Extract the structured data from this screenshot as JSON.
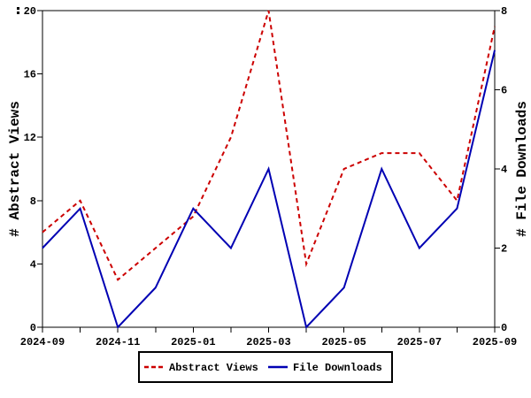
{
  "chart_data": {
    "type": "line",
    "x": [
      "2024-09",
      "2024-10",
      "2024-11",
      "2024-12",
      "2025-01",
      "2025-02",
      "2025-03",
      "2025-04",
      "2025-05",
      "2025-06",
      "2025-07",
      "2025-08",
      "2025-09"
    ],
    "x_tick_labels": [
      "2024-09",
      "2024-11",
      "2025-01",
      "2025-03",
      "2025-05",
      "2025-07",
      "2025-09"
    ],
    "series": [
      {
        "name": "Abstract Views",
        "axis": "left",
        "color": "#cc0000",
        "line_style": "dashed",
        "values": [
          6,
          8,
          3,
          5,
          7,
          12,
          20,
          4,
          10,
          11,
          11,
          8,
          19
        ]
      },
      {
        "name": "File Downloads",
        "axis": "right",
        "color": "#0000b3",
        "line_style": "solid",
        "values": [
          2,
          3,
          0,
          1,
          3,
          2,
          4,
          0,
          1,
          4,
          2,
          3,
          7
        ]
      }
    ],
    "left_axis": {
      "label": "# Abstract Views",
      "min": 0,
      "max": 20,
      "ticks": [
        0,
        4,
        8,
        12,
        16,
        20
      ]
    },
    "right_axis": {
      "label": "# File Downloads",
      "min": 0,
      "max": 8,
      "ticks": [
        0,
        2,
        4,
        6,
        8
      ]
    },
    "legend": {
      "position": "bottom-center",
      "entries": [
        "Abstract Views",
        "File Downloads"
      ]
    },
    "grid": false
  }
}
